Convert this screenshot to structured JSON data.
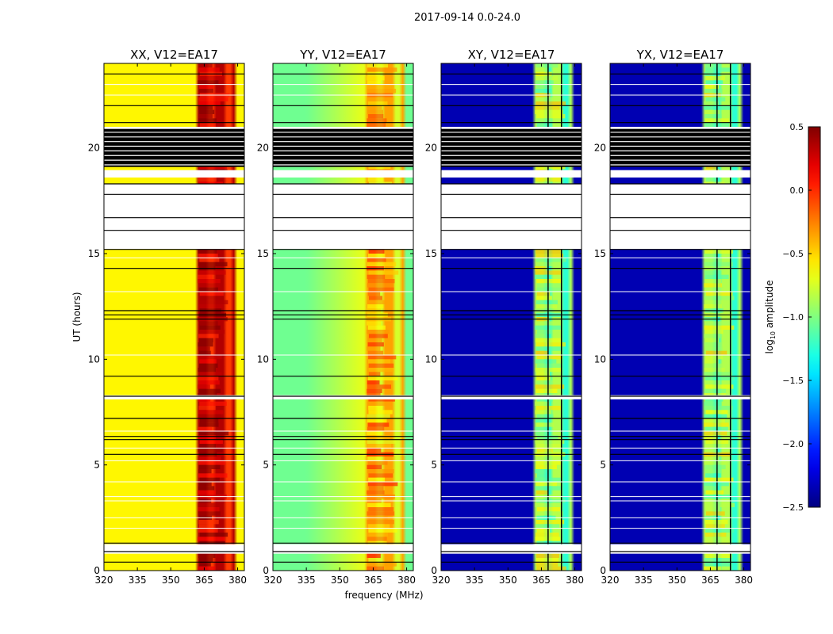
{
  "chart_data": {
    "type": "heatmap",
    "suptitle": "2017-09-14 0.0-24.0",
    "xlabel": "frequency (MHz)",
    "ylabel": "UT (hours)",
    "xlim": [
      320,
      383
    ],
    "ylim": [
      0,
      24
    ],
    "xticks": [
      320,
      335,
      350,
      365,
      380
    ],
    "yticks": [
      0,
      5,
      10,
      15,
      20
    ],
    "colorbar": {
      "label": "log10 amplitude",
      "range": [
        -2.5,
        0.5
      ],
      "ticks": [
        0.5,
        0.0,
        -0.5,
        -1.0,
        -1.5,
        -2.0,
        -2.5
      ],
      "tick_labels": [
        "0.5",
        "0.0",
        "−0.5",
        "−1.0",
        "−1.5",
        "−2.0",
        "−2.5"
      ],
      "colormap": "jet"
    },
    "panels": [
      {
        "title": "XX, V12=EA17",
        "pol": "XX",
        "base_level": -0.6,
        "rfi_level": 0.3
      },
      {
        "title": "YY, V12=EA17",
        "pol": "YY",
        "base_level": -1.05,
        "rfi_level": -0.4
      },
      {
        "title": "XY, V12=EA17",
        "pol": "XY",
        "base_level": -2.35,
        "rfi_level": -0.9
      },
      {
        "title": "YX, V12=EA17",
        "pol": "YX",
        "base_level": -2.35,
        "rfi_level": -0.9
      }
    ],
    "rfi_band_mhz": [
      362,
      379
    ],
    "flagged_utc_hours": [
      [
        0.8,
        1.25
      ],
      [
        8.1,
        8.3
      ],
      [
        15.2,
        18.3
      ],
      [
        18.6,
        18.95
      ],
      [
        19.9,
        21.0
      ]
    ],
    "colors": {
      "nodata": "#ffffff",
      "flag_lines": "#000000"
    }
  }
}
